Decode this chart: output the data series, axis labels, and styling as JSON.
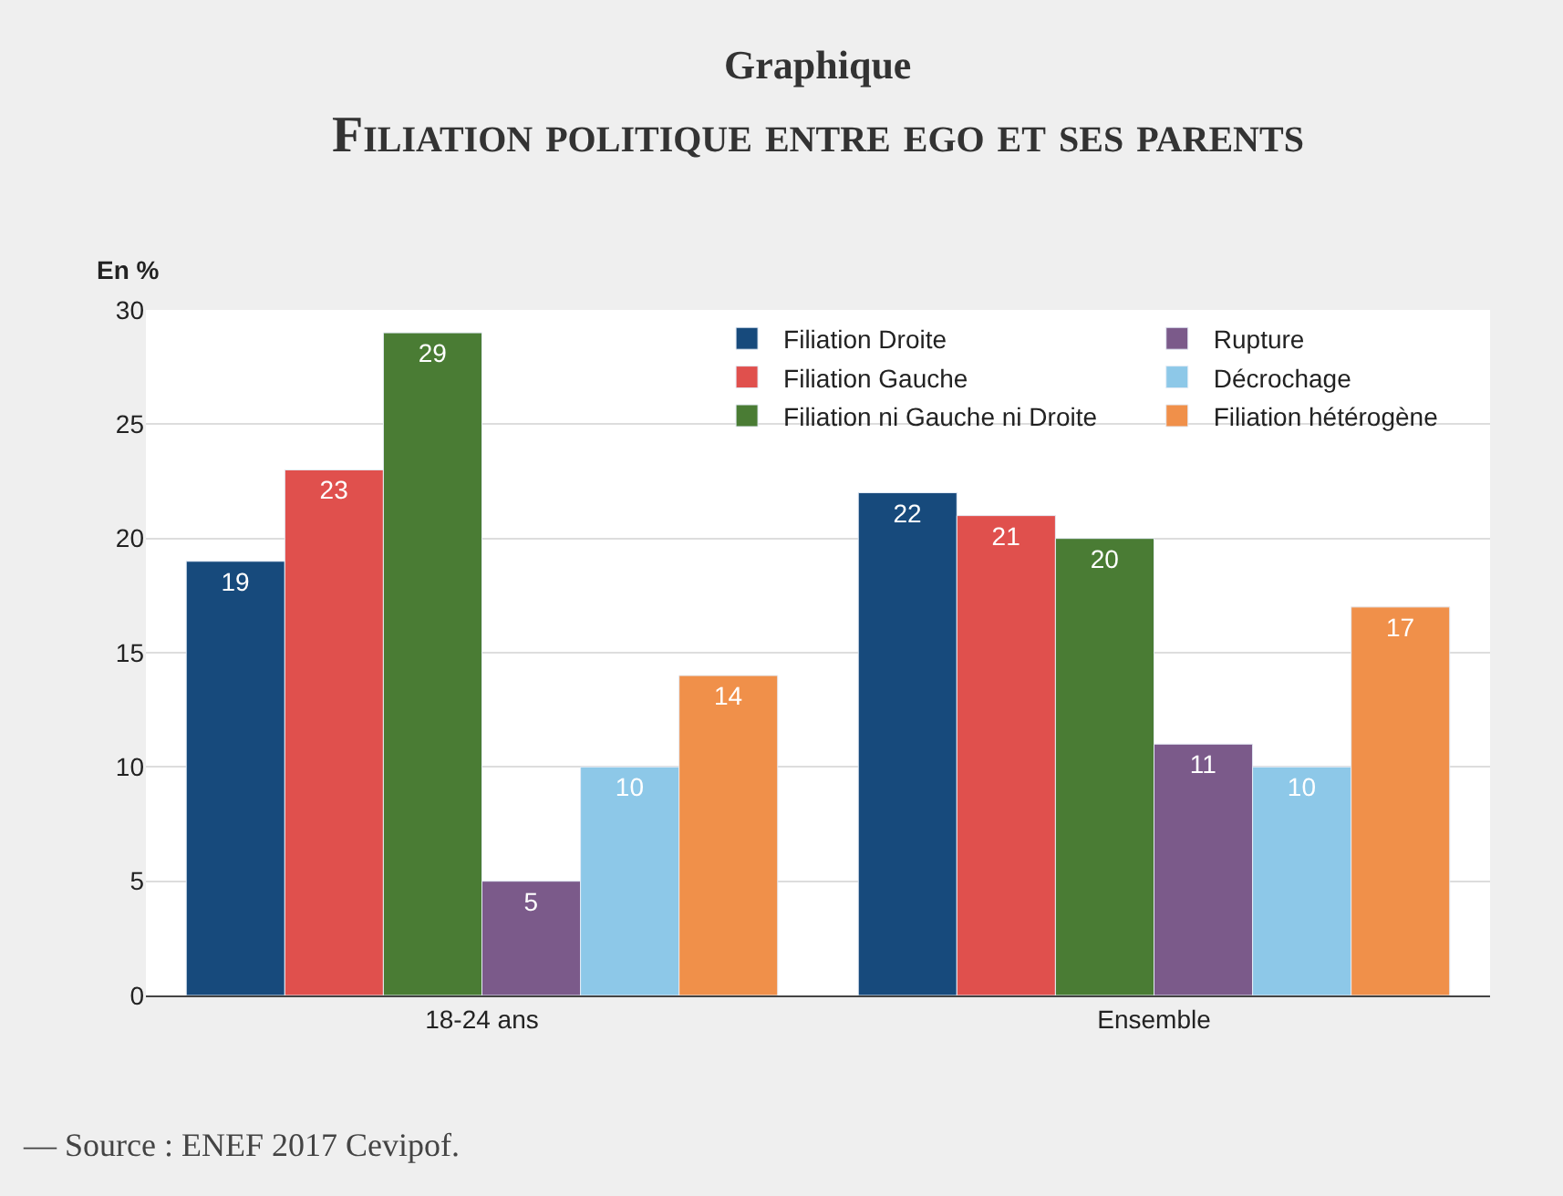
{
  "chart_data": {
    "type": "bar",
    "title": "Graphique",
    "subtitle": "Filiation politique entre ego et ses parents",
    "ylabel": "En %",
    "categories": [
      "18-24 ans",
      "Ensemble"
    ],
    "series": [
      {
        "name": "Filiation Droite",
        "color": "#174a7c",
        "values": [
          19,
          22
        ]
      },
      {
        "name": "Filiation Gauche",
        "color": "#e0504d",
        "values": [
          23,
          21
        ]
      },
      {
        "name": "Filiation ni Gauche ni Droite",
        "color": "#4a7c34",
        "values": [
          29,
          20
        ]
      },
      {
        "name": "Rupture",
        "color": "#7b5a8a",
        "values": [
          5,
          11
        ]
      },
      {
        "name": "Décrochage",
        "color": "#8dc8e8",
        "values": [
          10,
          10
        ]
      },
      {
        "name": "Filiation hétérogène",
        "color": "#f0904a",
        "values": [
          14,
          17
        ]
      }
    ],
    "ylim": [
      0,
      30
    ],
    "yticks": [
      0,
      5,
      10,
      15,
      20,
      25,
      30
    ],
    "grid": "y",
    "legend": "top right",
    "data_labels": true,
    "annotations": [
      "— Source : ENEF 2017 Cevipof."
    ]
  }
}
